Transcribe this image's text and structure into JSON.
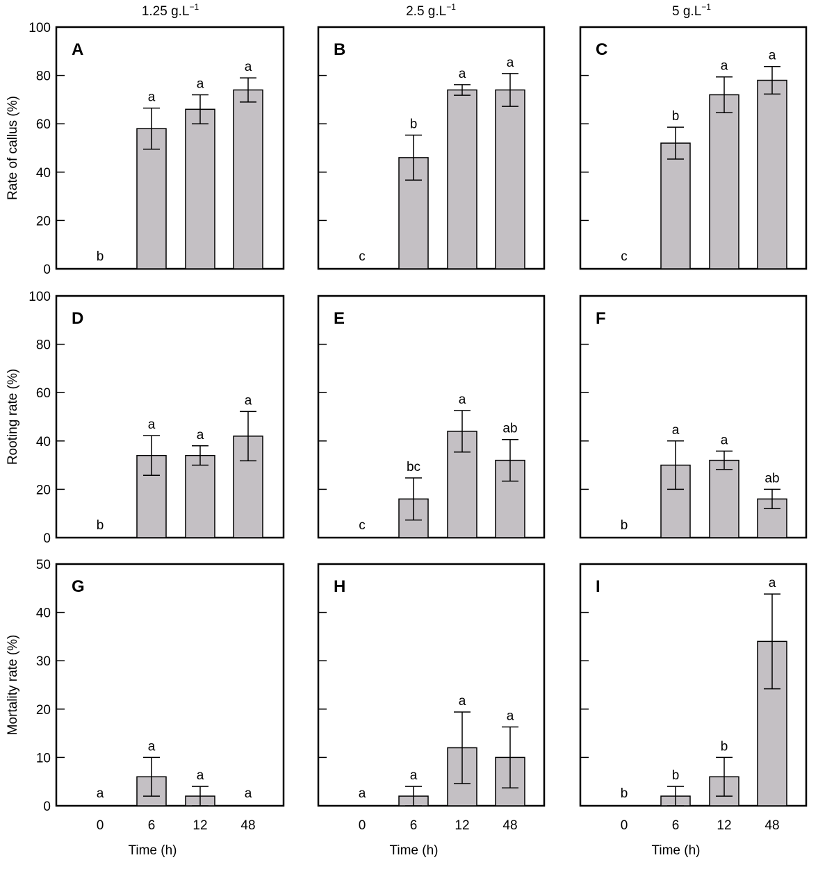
{
  "columns": [
    {
      "title_main": "1.25 g.L",
      "title_sup": "−1"
    },
    {
      "title_main": "2.5 g.L",
      "title_sup": "−1"
    },
    {
      "title_main": "5 g.L",
      "title_sup": "−1"
    }
  ],
  "rows": [
    {
      "ylabel": "Rate of callus (%)",
      "ylim": [
        0,
        100
      ],
      "yticks": [
        "0",
        "20",
        "40",
        "60",
        "80",
        "100"
      ]
    },
    {
      "ylabel": "Rooting rate (%)",
      "ylim": [
        0,
        100
      ],
      "yticks": [
        "0",
        "20",
        "40",
        "60",
        "80",
        "100"
      ]
    },
    {
      "ylabel": "Mortality rate (%)",
      "ylim": [
        0,
        50
      ],
      "yticks": [
        "0",
        "10",
        "20",
        "30",
        "40",
        "50"
      ]
    }
  ],
  "xlabel": "Time (h)",
  "chart_data": [
    {
      "panel": "A",
      "type": "bar",
      "categories": [
        "0",
        "6",
        "12",
        "48"
      ],
      "values": [
        0,
        58,
        66,
        74
      ],
      "errors": [
        0,
        8.5,
        6,
        5
      ],
      "letters": [
        "b",
        "a",
        "a",
        "a"
      ],
      "ylim": [
        0,
        100
      ],
      "ylabel": "Rate of callus (%)",
      "xlabel": ""
    },
    {
      "panel": "B",
      "type": "bar",
      "categories": [
        "0",
        "6",
        "12",
        "48"
      ],
      "values": [
        0,
        46,
        74,
        74
      ],
      "errors": [
        0,
        9.3,
        2.2,
        6.8
      ],
      "letters": [
        "c",
        "b",
        "a",
        "a"
      ],
      "ylim": [
        0,
        100
      ],
      "ylabel": "",
      "xlabel": ""
    },
    {
      "panel": "C",
      "type": "bar",
      "categories": [
        "0",
        "6",
        "12",
        "48"
      ],
      "values": [
        0,
        52,
        72,
        78
      ],
      "errors": [
        0,
        6.6,
        7.4,
        5.7
      ],
      "letters": [
        "c",
        "b",
        "a",
        "a"
      ],
      "ylim": [
        0,
        100
      ],
      "ylabel": "",
      "xlabel": ""
    },
    {
      "panel": "D",
      "type": "bar",
      "categories": [
        "0",
        "6",
        "12",
        "48"
      ],
      "values": [
        0,
        34,
        34,
        42
      ],
      "errors": [
        0,
        8.2,
        4,
        10.2
      ],
      "letters": [
        "b",
        "a",
        "a",
        "a"
      ],
      "ylim": [
        0,
        100
      ],
      "ylabel": "Rooting rate (%)",
      "xlabel": ""
    },
    {
      "panel": "E",
      "type": "bar",
      "categories": [
        "0",
        "6",
        "12",
        "48"
      ],
      "values": [
        0,
        16,
        44,
        32
      ],
      "errors": [
        0,
        8.7,
        8.6,
        8.6
      ],
      "letters": [
        "c",
        "bc",
        "a",
        "ab"
      ],
      "ylim": [
        0,
        100
      ],
      "ylabel": "",
      "xlabel": ""
    },
    {
      "panel": "F",
      "type": "bar",
      "categories": [
        "0",
        "6",
        "12",
        "48"
      ],
      "values": [
        0,
        30,
        32,
        16
      ],
      "errors": [
        0,
        10,
        3.8,
        4
      ],
      "letters": [
        "b",
        "a",
        "a",
        "ab"
      ],
      "ylim": [
        0,
        100
      ],
      "ylabel": "",
      "xlabel": ""
    },
    {
      "panel": "G",
      "type": "bar",
      "categories": [
        "0",
        "6",
        "12",
        "48"
      ],
      "values": [
        0,
        6,
        2,
        0
      ],
      "errors": [
        0,
        4,
        2,
        0
      ],
      "letters": [
        "a",
        "a",
        "a",
        "a"
      ],
      "ylim": [
        0,
        50
      ],
      "ylabel": "Mortality rate (%)",
      "xlabel": "Time (h)"
    },
    {
      "panel": "H",
      "type": "bar",
      "categories": [
        "0",
        "6",
        "12",
        "48"
      ],
      "values": [
        0,
        2,
        12,
        10
      ],
      "errors": [
        0,
        2,
        7.4,
        6.3
      ],
      "letters": [
        "a",
        "a",
        "a",
        "a"
      ],
      "ylim": [
        0,
        50
      ],
      "ylabel": "",
      "xlabel": "Time (h)"
    },
    {
      "panel": "I",
      "type": "bar",
      "categories": [
        "0",
        "6",
        "12",
        "48"
      ],
      "values": [
        0,
        2,
        6,
        34
      ],
      "errors": [
        0,
        2,
        4,
        9.8
      ],
      "letters": [
        "b",
        "b",
        "b",
        "a"
      ],
      "ylim": [
        0,
        50
      ],
      "ylabel": "",
      "xlabel": "Time (h)"
    }
  ],
  "colors": {
    "bar_fill": "#c4c0c4",
    "bar_stroke": "#000000",
    "axis": "#000000",
    "background": "#ffffff"
  }
}
